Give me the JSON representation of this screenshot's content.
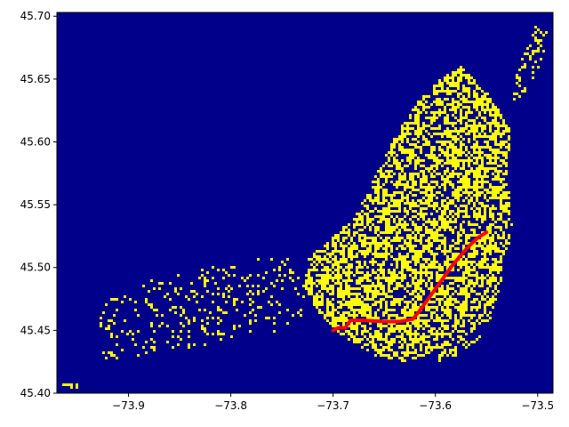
{
  "chart_data": {
    "type": "heatmap",
    "title": "",
    "xlabel": "",
    "ylabel": "",
    "xlim": [
      -73.97,
      -73.485
    ],
    "ylim": [
      45.4,
      45.703
    ],
    "x_ticks": [
      -73.9,
      -73.8,
      -73.7,
      -73.6,
      -73.5
    ],
    "x_tick_labels": [
      "−73.9",
      "−73.8",
      "−73.7",
      "−73.6",
      "−73.5"
    ],
    "y_ticks": [
      45.4,
      45.45,
      45.5,
      45.55,
      45.6,
      45.65,
      45.7
    ],
    "y_tick_labels": [
      "45.40",
      "45.45",
      "45.50",
      "45.55",
      "45.60",
      "45.65",
      "45.70"
    ],
    "grid": false,
    "colors": {
      "background_cell": "#00008b",
      "occupied_cell": "#ffff00",
      "path": "#ff0000"
    },
    "occupied_regions": [
      {
        "region": "main-island",
        "polygon": [
          [
            -73.63,
            45.425
          ],
          [
            -73.61,
            45.43
          ],
          [
            -73.57,
            45.445
          ],
          [
            -73.545,
            45.46
          ],
          [
            -73.535,
            45.49
          ],
          [
            -73.525,
            45.53
          ],
          [
            -73.53,
            45.58
          ],
          [
            -73.525,
            45.61
          ],
          [
            -73.55,
            45.64
          ],
          [
            -73.575,
            45.66
          ],
          [
            -73.595,
            45.65
          ],
          [
            -73.615,
            45.635
          ],
          [
            -73.635,
            45.61
          ],
          [
            -73.655,
            45.58
          ],
          [
            -73.675,
            45.545
          ],
          [
            -73.7,
            45.525
          ],
          [
            -73.72,
            45.51
          ],
          [
            -73.73,
            45.485
          ],
          [
            -73.71,
            45.46
          ],
          [
            -73.69,
            45.445
          ],
          [
            -73.66,
            45.43
          ]
        ],
        "density": 0.55
      },
      {
        "region": "north-tip",
        "polygon": [
          [
            -73.525,
            45.63
          ],
          [
            -73.51,
            45.64
          ],
          [
            -73.495,
            45.665
          ],
          [
            -73.49,
            45.69
          ],
          [
            -73.5,
            45.695
          ],
          [
            -73.51,
            45.68
          ],
          [
            -73.52,
            45.655
          ]
        ],
        "density": 0.35
      },
      {
        "region": "west-scatter",
        "polygon": [
          [
            -73.93,
            45.425
          ],
          [
            -73.8,
            45.44
          ],
          [
            -73.73,
            45.455
          ],
          [
            -73.7,
            45.49
          ],
          [
            -73.72,
            45.51
          ],
          [
            -73.8,
            45.505
          ],
          [
            -73.88,
            45.49
          ],
          [
            -73.93,
            45.47
          ]
        ],
        "density": 0.12
      },
      {
        "region": "south-east-strip",
        "polygon": [
          [
            -73.6,
            45.425
          ],
          [
            -73.57,
            45.43
          ],
          [
            -73.555,
            45.445
          ],
          [
            -73.58,
            45.445
          ],
          [
            -73.6,
            45.44
          ]
        ],
        "density": 0.3
      },
      {
        "region": "far-west-corner",
        "polygon": [
          [
            -73.965,
            45.403
          ],
          [
            -73.95,
            45.403
          ],
          [
            -73.95,
            45.408
          ],
          [
            -73.965,
            45.408
          ]
        ],
        "density": 0.5
      }
    ],
    "path": [
      [
        -73.7,
        45.45
      ],
      [
        -73.695,
        45.452
      ],
      [
        -73.688,
        45.452
      ],
      [
        -73.683,
        45.458
      ],
      [
        -73.67,
        45.458
      ],
      [
        -73.65,
        45.457
      ],
      [
        -73.635,
        45.457
      ],
      [
        -73.622,
        45.459
      ],
      [
        -73.615,
        45.466
      ],
      [
        -73.608,
        45.474
      ],
      [
        -73.6,
        45.483
      ],
      [
        -73.592,
        45.492
      ],
      [
        -73.584,
        45.501
      ],
      [
        -73.575,
        45.51
      ],
      [
        -73.566,
        45.518
      ],
      [
        -73.558,
        45.524
      ],
      [
        -73.55,
        45.528
      ]
    ]
  }
}
